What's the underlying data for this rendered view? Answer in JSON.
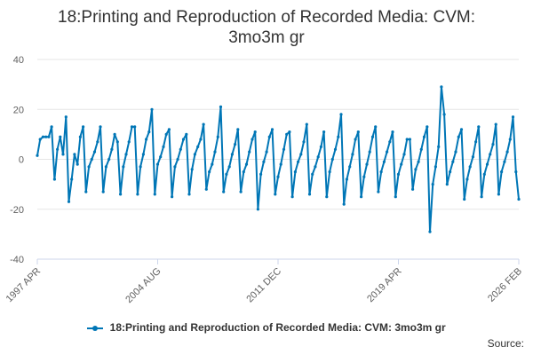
{
  "chart_data": {
    "type": "line",
    "title_lines": [
      "18:Printing and Reproduction of Recorded Media: CVM:",
      "3mo3m gr"
    ],
    "xlabel": "",
    "ylabel": "",
    "ylim": [
      -40,
      40
    ],
    "yticks": [
      40,
      20,
      0,
      -20,
      -40
    ],
    "xticks": [
      "1997 APR",
      "2004 AUG",
      "2011 DEC",
      "2019 APR",
      "2026 FEB"
    ],
    "x_start": "1997-04",
    "x_end": "2026-02",
    "grid": true,
    "legend_position": "bottom",
    "series": [
      {
        "name": "18:Printing and Reproduction of Recorded Media: CVM: 3mo3m gr",
        "color": "#0076b6",
        "values": [
          1.5,
          8,
          9,
          9,
          9,
          13,
          -8,
          4,
          9,
          2,
          17,
          -17,
          -8,
          2,
          -2,
          9,
          13,
          -13,
          -3,
          0,
          3,
          7,
          13,
          -13,
          -3,
          0,
          4,
          10,
          7,
          -14,
          -3,
          2,
          7,
          13,
          13,
          -14,
          -3,
          2,
          8,
          11,
          20,
          -14,
          -2,
          1,
          5,
          10,
          12,
          -15,
          -3,
          0,
          4,
          8,
          10,
          -14,
          -4,
          2,
          5,
          8,
          14,
          -12,
          -5,
          -2,
          3,
          9,
          21,
          -13,
          -6,
          -3,
          2,
          6,
          12,
          -13,
          -5,
          -2,
          3,
          8,
          11,
          -20,
          -6,
          -1,
          3,
          9,
          12,
          -14,
          -7,
          -2,
          4,
          10,
          11,
          -15,
          -5,
          -1,
          2,
          7,
          14,
          -14,
          -6,
          -3,
          1,
          5,
          11,
          -15,
          -5,
          0,
          4,
          9,
          18,
          -18,
          -8,
          -3,
          2,
          8,
          11,
          -15,
          -7,
          -2,
          3,
          9,
          13,
          -13,
          -5,
          -1,
          3,
          7,
          11,
          -15,
          -6,
          -2,
          2,
          8,
          8,
          -12,
          -4,
          -1,
          4,
          9,
          13,
          -29,
          -10,
          -3,
          5,
          29,
          18,
          -10,
          -5,
          -1,
          3,
          9,
          12,
          -16,
          -8,
          -3,
          1,
          7,
          13,
          -15,
          -6,
          -2,
          2,
          6,
          14,
          -14,
          -5,
          -1,
          3,
          8,
          17,
          -5,
          -16
        ]
      }
    ],
    "legend_label": "18:Printing and Reproduction of Recorded Media: CVM: 3mo3m gr"
  },
  "source_label": "Source:"
}
